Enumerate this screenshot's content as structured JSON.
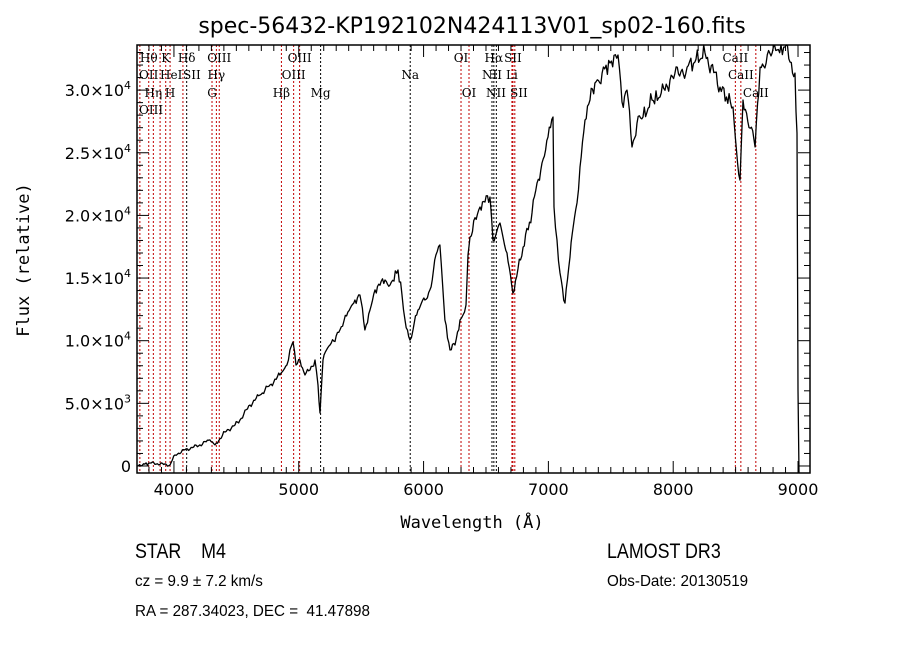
{
  "chart_data": {
    "type": "line",
    "title": "spec-56432-KP192102N424113V01_sp02-160.fits",
    "xlabel": "Wavelength (Å)",
    "ylabel": "Flux (relative)",
    "xlim": [
      3704,
      9096
    ],
    "ylim": [
      -560,
      33600
    ],
    "grid": false,
    "xticks": [
      4000,
      5000,
      6000,
      7000,
      8000,
      9000
    ],
    "xtick_labels": [
      "4000",
      "5000",
      "6000",
      "7000",
      "8000",
      "9000"
    ],
    "yticks": [
      0,
      5000,
      10000,
      15000,
      20000,
      25000,
      30000
    ],
    "ytick_labels": [
      {
        "mant": "0",
        "exp": ""
      },
      {
        "mant": "5.0×10",
        "exp": "3"
      },
      {
        "mant": "1.0×10",
        "exp": "4"
      },
      {
        "mant": "1.5×10",
        "exp": "4"
      },
      {
        "mant": "2.0×10",
        "exp": "4"
      },
      {
        "mant": "2.5×10",
        "exp": "4"
      },
      {
        "mant": "3.0×10",
        "exp": "4"
      }
    ],
    "series": [
      {
        "name": "spectrum",
        "color": "#000000",
        "x": [
          3704,
          3808,
          3968,
          4008,
          4088,
          4208,
          4288,
          4329,
          4409,
          4489,
          4529,
          4609,
          4689,
          4769,
          4849,
          4905,
          4929,
          4954,
          4978,
          5010,
          5050,
          5090,
          5130,
          5154,
          5170,
          5194,
          5250,
          5330,
          5394,
          5450,
          5490,
          5530,
          5571,
          5611,
          5691,
          5731,
          5795,
          5827,
          5851,
          5891,
          5915,
          5955,
          6011,
          6051,
          6099,
          6131,
          6171,
          6212,
          6252,
          6292,
          6316,
          6340,
          6356,
          6372,
          6452,
          6532,
          6556,
          6612,
          6668,
          6716,
          6797,
          6869,
          6909,
          6949,
          6997,
          7037,
          7045,
          7069,
          7093,
          7133,
          7173,
          7229,
          7253,
          7293,
          7333,
          7373,
          7430,
          7494,
          7558,
          7590,
          7630,
          7670,
          7710,
          7758,
          7830,
          7894,
          7974,
          8111,
          8255,
          8375,
          8479,
          8535,
          8559,
          8656,
          8696,
          8832,
          8896,
          8976,
          8992,
          9000,
          9008
        ],
        "y": [
          0,
          240,
          80,
          880,
          1280,
          1680,
          2080,
          1680,
          2710,
          3270,
          3670,
          4870,
          5660,
          6460,
          7260,
          8060,
          9260,
          9900,
          8060,
          8460,
          7260,
          7660,
          8460,
          6460,
          4230,
          8460,
          9660,
          10850,
          12290,
          13250,
          13650,
          10850,
          12450,
          14050,
          14840,
          14440,
          15640,
          13650,
          11650,
          10050,
          10850,
          12450,
          13250,
          14050,
          16840,
          17640,
          11650,
          9260,
          9660,
          11650,
          12050,
          12850,
          16840,
          18270,
          20670,
          21470,
          18030,
          19390,
          17000,
          13800,
          17470,
          20190,
          22580,
          24180,
          26250,
          27850,
          20670,
          18030,
          15400,
          13000,
          16680,
          20990,
          23860,
          27610,
          29210,
          30560,
          31360,
          32160,
          32800,
          29050,
          30000,
          25460,
          27370,
          27850,
          29210,
          29450,
          30800,
          31840,
          32960,
          30240,
          28650,
          22820,
          29210,
          25460,
          31840,
          33200,
          33440,
          31360,
          26570,
          6060,
          -560
        ]
      }
    ],
    "lines": [
      {
        "w": 3727,
        "color": "#c00000"
      },
      {
        "w": 3798,
        "color": "#c00000"
      },
      {
        "w": 3835,
        "color": "#c00000"
      },
      {
        "w": 3889,
        "color": "#c00000"
      },
      {
        "w": 3934,
        "color": "#c00000"
      },
      {
        "w": 3969,
        "color": "#c00000"
      },
      {
        "w": 4072,
        "color": "#c00000"
      },
      {
        "w": 4102,
        "color": "#000000"
      },
      {
        "w": 4305,
        "color": "#c00000"
      },
      {
        "w": 4340,
        "color": "#c00000"
      },
      {
        "w": 4363,
        "color": "#c00000"
      },
      {
        "w": 4861,
        "color": "#c00000"
      },
      {
        "w": 4959,
        "color": "#c00000"
      },
      {
        "w": 5007,
        "color": "#c00000"
      },
      {
        "w": 5175,
        "color": "#000000"
      },
      {
        "w": 5893,
        "color": "#000000"
      },
      {
        "w": 6300,
        "color": "#c00000"
      },
      {
        "w": 6364,
        "color": "#c00000"
      },
      {
        "w": 6548,
        "color": "#000000"
      },
      {
        "w": 6563,
        "color": "#000000"
      },
      {
        "w": 6583,
        "color": "#000000"
      },
      {
        "w": 6708,
        "color": "#c00000"
      },
      {
        "w": 6716,
        "color": "#c00000"
      },
      {
        "w": 6731,
        "color": "#c00000"
      },
      {
        "w": 8498,
        "color": "#c00000"
      },
      {
        "w": 8542,
        "color": "#c00000"
      },
      {
        "w": 8662,
        "color": "#c00000"
      }
    ],
    "line_labels": [
      {
        "text": "Hθ",
        "w": 3798,
        "row": 1
      },
      {
        "text": "K",
        "w": 3934,
        "row": 1
      },
      {
        "text": "Hδ",
        "w": 4102,
        "row": 1
      },
      {
        "text": "OIII",
        "w": 4363,
        "row": 1
      },
      {
        "text": "OIII",
        "w": 5007,
        "row": 1
      },
      {
        "text": "OI",
        "w": 6300,
        "row": 1
      },
      {
        "text": "Hα",
        "w": 6563,
        "row": 1
      },
      {
        "text": "SII",
        "w": 6716,
        "row": 1
      },
      {
        "text": "CaII",
        "w": 8498,
        "row": 1
      },
      {
        "text": "OII",
        "w": 3727,
        "row": 2
      },
      {
        "text": "HeI",
        "w": 3889,
        "row": 2
      },
      {
        "text": "SII",
        "w": 4072,
        "row": 2
      },
      {
        "text": "Hγ",
        "w": 4340,
        "row": 2
      },
      {
        "text": "OIII",
        "w": 4959,
        "row": 2
      },
      {
        "text": "Na",
        "w": 5893,
        "row": 2
      },
      {
        "text": "NII",
        "w": 6548,
        "row": 2
      },
      {
        "text": "Li",
        "w": 6708,
        "row": 2
      },
      {
        "text": "CaII",
        "w": 8542,
        "row": 2
      },
      {
        "text": "OIII",
        "w": 3740,
        "row": 3
      },
      {
        "text": "Hη",
        "w": 3835,
        "row": 3
      },
      {
        "text": "H",
        "w": 3969,
        "row": 3
      },
      {
        "text": "G",
        "w": 4305,
        "row": 3
      },
      {
        "text": "Hβ",
        "w": 4861,
        "row": 3
      },
      {
        "text": "Mg",
        "w": 5175,
        "row": 3
      },
      {
        "text": "OI",
        "w": 6364,
        "row": 3
      },
      {
        "text": "NII",
        "w": 6583,
        "row": 3
      },
      {
        "text": "SII",
        "w": 6731,
        "row": 3
      },
      {
        "text": "CaII",
        "w": 8662,
        "row": 3
      }
    ]
  },
  "info": {
    "class_label": "STAR    M4",
    "cz": "cz = 9.9 ± 7.2 km/s",
    "coords": "RA = 287.34023, DEC =  41.47898",
    "survey": "LAMOST DR3",
    "obs_date": "Obs-Date: 20130519"
  }
}
